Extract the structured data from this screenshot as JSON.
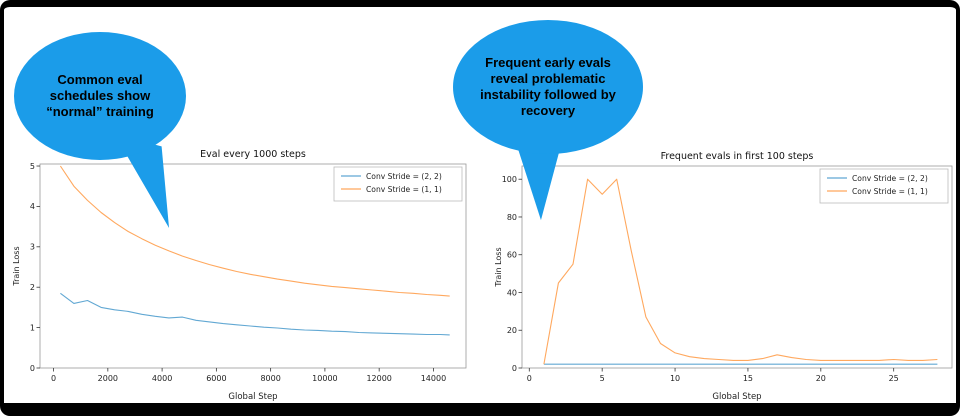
{
  "slide": {
    "background": "#ffffff",
    "frame_color": "#000000"
  },
  "callouts": [
    {
      "text": "Common eval schedules show “normal” training",
      "color": "#1b9ce9"
    },
    {
      "text": "Frequent early evals reveal problematic instability followed by recovery",
      "color": "#1b9ce9"
    }
  ],
  "chart_data": [
    {
      "type": "line",
      "title": "Eval every 1000 steps",
      "xlabel": "Global Step",
      "ylabel": "Train Loss",
      "xlim": [
        -500,
        15200
      ],
      "ylim": [
        0,
        5.05
      ],
      "xticks": [
        0,
        2000,
        4000,
        6000,
        8000,
        10000,
        12000,
        14000
      ],
      "yticks": [
        0,
        1,
        2,
        3,
        4,
        5
      ],
      "grid": false,
      "legend_position": "upper right",
      "series": [
        {
          "name": "Conv Stride =  (2, 2)",
          "color": "#62a8d3",
          "x": [
            250,
            750,
            1250,
            1750,
            2250,
            2750,
            3250,
            3750,
            4250,
            4750,
            5250,
            5750,
            6250,
            6750,
            7250,
            7750,
            8250,
            8750,
            9250,
            9750,
            10250,
            10750,
            11250,
            11750,
            12250,
            12750,
            13250,
            13750,
            14250,
            14600
          ],
          "y": [
            1.85,
            1.6,
            1.67,
            1.5,
            1.44,
            1.4,
            1.33,
            1.28,
            1.24,
            1.26,
            1.18,
            1.14,
            1.1,
            1.07,
            1.04,
            1.01,
            0.99,
            0.96,
            0.94,
            0.93,
            0.91,
            0.9,
            0.88,
            0.87,
            0.86,
            0.85,
            0.84,
            0.83,
            0.83,
            0.82
          ]
        },
        {
          "name": "Conv Stride =  (1, 1)",
          "color": "#ffa85e",
          "x": [
            250,
            750,
            1250,
            1750,
            2250,
            2750,
            3250,
            3750,
            4250,
            4750,
            5250,
            5750,
            6250,
            6750,
            7250,
            7750,
            8250,
            8750,
            9250,
            9750,
            10250,
            10750,
            11250,
            11750,
            12250,
            12750,
            13250,
            13750,
            14250,
            14600
          ],
          "y": [
            5.0,
            4.5,
            4.15,
            3.85,
            3.6,
            3.38,
            3.2,
            3.04,
            2.9,
            2.77,
            2.66,
            2.56,
            2.47,
            2.39,
            2.32,
            2.26,
            2.2,
            2.15,
            2.1,
            2.06,
            2.02,
            1.99,
            1.96,
            1.93,
            1.9,
            1.87,
            1.85,
            1.82,
            1.8,
            1.78
          ]
        }
      ]
    },
    {
      "type": "line",
      "title": "Frequent evals in first 100 steps",
      "xlabel": "Global Step",
      "ylabel": "Train Loss",
      "xlim": [
        -0.5,
        29
      ],
      "ylim": [
        0,
        107
      ],
      "xticks": [
        0,
        5,
        10,
        15,
        20,
        25
      ],
      "yticks": [
        0,
        20,
        40,
        60,
        80,
        100
      ],
      "grid": false,
      "legend_position": "upper right",
      "series": [
        {
          "name": "Conv Stride =  (2, 2)",
          "color": "#62a8d3",
          "x": [
            1,
            2,
            3,
            4,
            5,
            6,
            7,
            8,
            9,
            10,
            11,
            12,
            13,
            14,
            15,
            16,
            17,
            18,
            19,
            20,
            21,
            22,
            23,
            24,
            25,
            26,
            27,
            28
          ],
          "y": [
            2,
            2,
            2,
            2,
            2,
            2,
            2,
            2,
            2,
            2,
            2,
            2,
            2,
            2,
            2,
            2,
            2,
            2,
            2,
            2,
            2,
            2,
            2,
            2,
            2,
            2,
            2,
            2
          ]
        },
        {
          "name": "Conv Stride =  (1, 1)",
          "color": "#ffa85e",
          "x": [
            1,
            2,
            3,
            4,
            5,
            6,
            7,
            8,
            9,
            10,
            11,
            12,
            13,
            14,
            15,
            16,
            17,
            18,
            19,
            20,
            21,
            22,
            23,
            24,
            25,
            26,
            27,
            28
          ],
          "y": [
            2,
            45,
            55,
            100,
            92,
            100,
            62,
            27,
            13,
            8,
            6,
            5,
            4.5,
            4,
            4,
            5,
            7,
            5.5,
            4.5,
            4,
            4,
            4,
            4,
            4,
            4.5,
            4,
            4,
            4.5
          ]
        }
      ]
    }
  ]
}
